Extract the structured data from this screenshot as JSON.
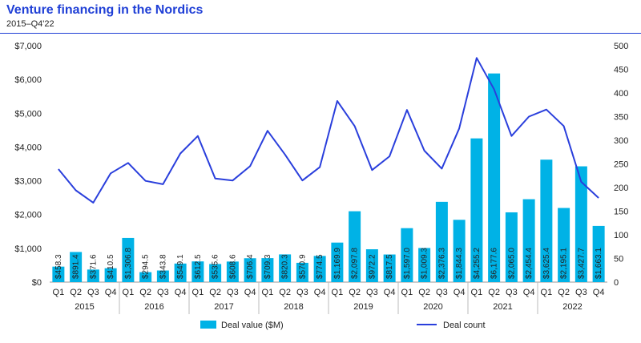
{
  "header": {
    "title": "Venture financing in the Nordics",
    "subtitle": "2015–Q4'22"
  },
  "colors": {
    "bar": "#00b2e6",
    "line": "#2a3fdc",
    "title": "#1f3fd6"
  },
  "chart_data": {
    "type": "bar",
    "categories": [
      "Q1",
      "Q2",
      "Q3",
      "Q4",
      "Q1",
      "Q2",
      "Q3",
      "Q4",
      "Q1",
      "Q2",
      "Q3",
      "Q4",
      "Q1",
      "Q2",
      "Q3",
      "Q4",
      "Q1",
      "Q2",
      "Q3",
      "Q4",
      "Q1",
      "Q2",
      "Q3",
      "Q4",
      "Q1",
      "Q2",
      "Q3",
      "Q4",
      "Q1",
      "Q2",
      "Q3",
      "Q4"
    ],
    "years": [
      "2015",
      "2016",
      "2017",
      "2018",
      "2019",
      "2020",
      "2021",
      "2022"
    ],
    "series": [
      {
        "name": "Deal value ($M)",
        "type": "bar",
        "axis": "left",
        "values": [
          458.3,
          891.4,
          371.6,
          410.5,
          1306.8,
          294.5,
          343.8,
          549.1,
          612.5,
          535.6,
          608.6,
          706.4,
          709.3,
          820.3,
          570.9,
          774.5,
          1169.9,
          2097.8,
          972.2,
          817.5,
          1597.0,
          1009.3,
          2376.3,
          1844.3,
          4255.2,
          6177.6,
          2065.0,
          2454.4,
          3625.4,
          2195.1,
          3427.7,
          1663.1
        ],
        "labels": [
          "$458.3",
          "$891.4",
          "$371.6",
          "$410.5",
          "$1,306.8",
          "$294.5",
          "$343.8",
          "$549.1",
          "$612.5",
          "$535.6",
          "$608.6",
          "$706.4",
          "$709.3",
          "$820.3",
          "$570.9",
          "$774.5",
          "$1,169.9",
          "$2,097.8",
          "$972.2",
          "$817.5",
          "$1,597.0",
          "$1,009.3",
          "$2,376.3",
          "$1,844.3",
          "$4,255.2",
          "$6,177.6",
          "$2,065.0",
          "$2,454.4",
          "$3,625.4",
          "$2,195.1",
          "$3,427.7",
          "$1,663.1"
        ]
      },
      {
        "name": "Deal count",
        "type": "line",
        "axis": "right",
        "values": [
          239,
          194,
          168,
          230,
          252,
          214,
          207,
          272,
          309,
          219,
          215,
          245,
          320,
          270,
          215,
          243,
          383,
          330,
          237,
          266,
          364,
          278,
          240,
          325,
          474,
          408,
          309,
          350,
          365,
          330,
          212,
          178
        ]
      }
    ],
    "y_left": {
      "ylim": [
        0,
        7000
      ],
      "ticks": [
        "$0",
        "$1,000",
        "$2,000",
        "$3,000",
        "$4,000",
        "$5,000",
        "$6,000",
        "$7,000"
      ]
    },
    "y_right": {
      "ylim": [
        0,
        500
      ],
      "ticks": [
        "0",
        "50",
        "100",
        "150",
        "200",
        "250",
        "300",
        "350",
        "400",
        "450",
        "500"
      ]
    },
    "grid": false,
    "legend_position": "bottom"
  }
}
